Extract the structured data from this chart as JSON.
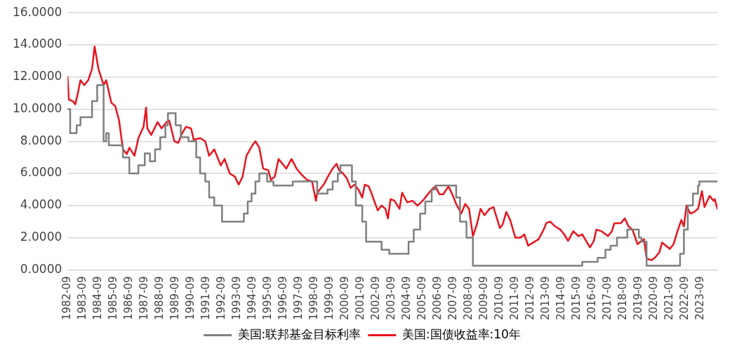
{
  "chart_data": {
    "type": "line",
    "xlim": [
      "1982-09",
      "2024-10"
    ],
    "xticks": [
      "1982-09",
      "1983-09",
      "1984-09",
      "1985-09",
      "1986-09",
      "1987-09",
      "1988-09",
      "1989-09",
      "1990-09",
      "1991-09",
      "1992-09",
      "1993-09",
      "1994-09",
      "1995-09",
      "1996-09",
      "1997-09",
      "1998-09",
      "1999-09",
      "2000-09",
      "2001-09",
      "2002-09",
      "2003-09",
      "2004-09",
      "2005-09",
      "2006-09",
      "2007-09",
      "2008-09",
      "2009-09",
      "2010-09",
      "2011-09",
      "2012-09",
      "2013-09",
      "2014-09",
      "2015-09",
      "2016-09",
      "2017-09",
      "2018-09",
      "2019-09",
      "2020-09",
      "2021-09",
      "2022-09",
      "2023-09"
    ],
    "ylim": [
      0,
      16
    ],
    "yticks": [
      {
        "value": 0,
        "label": "0.0000"
      },
      {
        "value": 2,
        "label": "2.0000"
      },
      {
        "value": 4,
        "label": "4.0000"
      },
      {
        "value": 6,
        "label": "6.0000"
      },
      {
        "value": 8,
        "label": "8.0000"
      },
      {
        "value": 10,
        "label": "10.0000"
      },
      {
        "value": 12,
        "label": "12.0000"
      },
      {
        "value": 14,
        "label": "14.0000"
      },
      {
        "value": 16,
        "label": "16.0000"
      }
    ],
    "grid": "y",
    "legend": "bottom",
    "marker": "none",
    "line_style": "solid",
    "series": [
      {
        "name": "美国:联邦基金目标利率",
        "type": "step",
        "color": "#7f7f7f",
        "x": [
          "1982-09",
          "1982-11",
          "1983-04",
          "1983-07",
          "1984-04",
          "1984-08",
          "1985-01",
          "1985-03",
          "1985-05",
          "1986-04",
          "1986-09",
          "1987-04",
          "1987-09",
          "1988-01",
          "1988-05",
          "1988-09",
          "1989-01",
          "1989-03",
          "1989-09",
          "1990-01",
          "1990-07",
          "1991-01",
          "1991-04",
          "1991-08",
          "1991-11",
          "1992-03",
          "1992-09",
          "1994-02",
          "1994-05",
          "1994-08",
          "1994-11",
          "1995-02",
          "1995-08",
          "1996-01",
          "1997-04",
          "1998-11",
          "1999-07",
          "1999-11",
          "2000-03",
          "2000-05",
          "2001-02",
          "2001-05",
          "2001-10",
          "2002-01",
          "2003-01",
          "2003-07",
          "2004-10",
          "2005-02",
          "2005-07",
          "2005-11",
          "2006-04",
          "2006-07",
          "2007-11",
          "2008-02",
          "2008-07",
          "2008-12",
          "2016-01",
          "2017-01",
          "2017-07",
          "2017-11",
          "2018-04",
          "2018-12",
          "2019-09",
          "2019-11",
          "2020-03",
          "2022-05",
          "2022-08",
          "2022-11",
          "2023-03",
          "2023-07",
          "2023-08",
          "2024-10"
        ],
        "values": [
          10,
          8.5,
          9,
          9.5,
          10.5,
          11.5,
          8,
          8.5,
          7.75,
          7,
          6,
          6.5,
          7.25,
          6.75,
          7.5,
          8.25,
          9,
          9.75,
          9,
          8.25,
          8,
          7,
          6,
          5.5,
          4.5,
          4,
          3,
          3.5,
          4.25,
          4.75,
          5.5,
          6,
          5.5,
          5.25,
          5.5,
          4.75,
          5,
          5.5,
          6,
          6.5,
          5.5,
          4,
          3,
          1.75,
          1.25,
          1,
          1.75,
          2.5,
          3.5,
          4.25,
          5,
          5.25,
          4.5,
          3,
          2,
          0.25,
          0.5,
          0.75,
          1.25,
          1.5,
          2,
          2.5,
          2,
          1.75,
          0.25,
          1,
          2.5,
          4,
          4.75,
          5.25,
          5.5,
          5.5
        ]
      },
      {
        "name": "美国:国债收益率:10年",
        "type": "line",
        "color": "#e8141e",
        "x": [
          "1982-09",
          "1982-10",
          "1983-01",
          "1983-03",
          "1983-05",
          "1983-07",
          "1983-10",
          "1984-01",
          "1984-04",
          "1984-06",
          "1984-09",
          "1985-01",
          "1985-03",
          "1985-07",
          "1985-10",
          "1986-01",
          "1986-04",
          "1986-07",
          "1986-09",
          "1987-01",
          "1987-04",
          "1987-08",
          "1987-10",
          "1987-11",
          "1988-02",
          "1988-07",
          "1988-10",
          "1989-02",
          "1989-04",
          "1989-08",
          "1989-11",
          "1990-02",
          "1990-05",
          "1990-09",
          "1990-11",
          "1991-04",
          "1991-08",
          "1991-11",
          "1992-03",
          "1992-08",
          "1992-11",
          "1993-03",
          "1993-07",
          "1993-10",
          "1994-01",
          "1994-04",
          "1994-09",
          "1994-11",
          "1995-02",
          "1995-05",
          "1995-09",
          "1995-11",
          "1996-02",
          "1996-05",
          "1996-08",
          "1996-11",
          "1997-03",
          "1997-07",
          "1997-10",
          "1998-03",
          "1998-07",
          "1998-10",
          "1998-11",
          "1999-04",
          "1999-08",
          "1999-11",
          "2000-02",
          "2000-04",
          "2000-07",
          "2000-10",
          "2001-01",
          "2001-04",
          "2001-07",
          "2001-10",
          "2001-12",
          "2002-03",
          "2002-05",
          "2002-10",
          "2003-01",
          "2003-04",
          "2003-06",
          "2003-08",
          "2003-11",
          "2004-03",
          "2004-05",
          "2004-09",
          "2005-01",
          "2005-05",
          "2005-09",
          "2005-11",
          "2006-04",
          "2006-07",
          "2006-10",
          "2007-01",
          "2007-05",
          "2007-08",
          "2007-11",
          "2008-03",
          "2008-06",
          "2008-09",
          "2008-12",
          "2009-03",
          "2009-06",
          "2009-09",
          "2010-01",
          "2010-04",
          "2010-09",
          "2010-11",
          "2011-02",
          "2011-05",
          "2011-09",
          "2012-01",
          "2012-04",
          "2012-07",
          "2012-11",
          "2013-03",
          "2013-07",
          "2013-09",
          "2013-12",
          "2014-04",
          "2014-08",
          "2014-11",
          "2015-02",
          "2015-06",
          "2015-10",
          "2016-01",
          "2016-04",
          "2016-07",
          "2016-10",
          "2016-12",
          "2017-04",
          "2017-09",
          "2017-12",
          "2018-02",
          "2018-07",
          "2018-10",
          "2019-01",
          "2019-04",
          "2019-08",
          "2019-11",
          "2020-01",
          "2020-03",
          "2020-07",
          "2020-10",
          "2021-01",
          "2021-03",
          "2021-06",
          "2021-09",
          "2021-12",
          "2022-03",
          "2022-06",
          "2022-08",
          "2022-10",
          "2023-01",
          "2023-04",
          "2023-07",
          "2023-10",
          "2023-12",
          "2024-04",
          "2024-07",
          "2024-08",
          "2024-10"
        ],
        "values": [
          12,
          10.6,
          10.5,
          10.3,
          11,
          11.8,
          11.5,
          11.8,
          12.5,
          13.9,
          12.5,
          11.5,
          11.8,
          10.4,
          10.2,
          9.3,
          7.5,
          7.2,
          7.6,
          7.1,
          8.2,
          8.9,
          10.1,
          8.8,
          8.4,
          9.2,
          8.8,
          9.2,
          9.3,
          8,
          7.9,
          8.5,
          8.9,
          8.8,
          8.1,
          8.2,
          8,
          7.1,
          7.5,
          6.5,
          6.9,
          6,
          5.8,
          5.3,
          5.8,
          7.1,
          7.8,
          8,
          7.6,
          6.3,
          6.2,
          5.6,
          5.8,
          6.9,
          6.6,
          6.3,
          6.9,
          6.3,
          6,
          5.6,
          5.5,
          4.3,
          4.8,
          5.3,
          5.9,
          6.3,
          6.6,
          6.2,
          6,
          5.7,
          5.1,
          5.3,
          5,
          4.5,
          5.3,
          5.2,
          4.8,
          3.7,
          4,
          3.8,
          3.2,
          4.4,
          4.3,
          3.8,
          4.8,
          4.2,
          4.3,
          4,
          4.3,
          4.5,
          5,
          5.2,
          4.7,
          4.7,
          5.2,
          4.7,
          4.1,
          3.5,
          4.1,
          3.8,
          2.1,
          2.8,
          3.8,
          3.4,
          3.8,
          3.9,
          2.6,
          2.8,
          3.6,
          3.1,
          2,
          2,
          2.2,
          1.5,
          1.7,
          1.9,
          2.5,
          2.9,
          3,
          2.7,
          2.5,
          2.2,
          1.8,
          2.4,
          2.1,
          2.2,
          1.8,
          1.4,
          1.8,
          2.5,
          2.4,
          2.1,
          2.4,
          2.9,
          2.9,
          3.2,
          2.7,
          2.5,
          1.6,
          1.8,
          1.9,
          0.7,
          0.6,
          0.8,
          1.1,
          1.7,
          1.5,
          1.3,
          1.6,
          2.4,
          3.1,
          2.7,
          4,
          3.5,
          3.6,
          3.8,
          4.9,
          3.9,
          4.6,
          4.3,
          4.4,
          3.8
        ]
      }
    ]
  }
}
